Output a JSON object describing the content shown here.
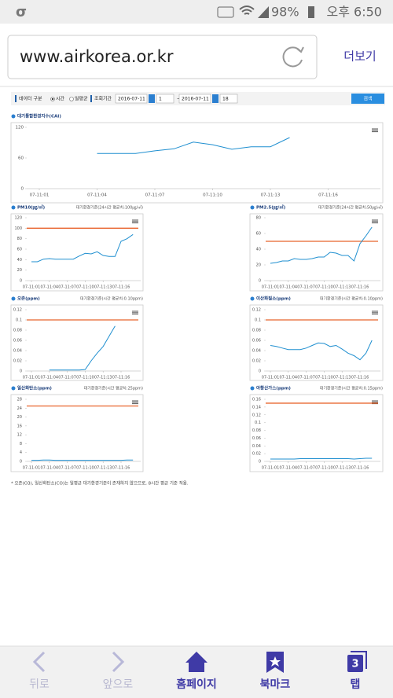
{
  "status_bar": {
    "battery": "98%",
    "time": "오후 6:50"
  },
  "browser": {
    "url": "www.airkorea.or.kr",
    "menu": "더보기"
  },
  "form": {
    "data_type_label": "데이터 구분",
    "option_hourly": "시간",
    "option_daily": "일평균",
    "period_label": "조회기간",
    "start_date": "2016-07-11",
    "start_hour": "1",
    "tilde": "~",
    "end_date": "2016-07-11",
    "end_hour": "18",
    "search": "검색"
  },
  "charts": [
    {
      "type": "line",
      "title": "대기통합환경지수(CAI)",
      "color": "#1f8fd0",
      "categories": [
        "07-11:01",
        null,
        null,
        "07-11:04",
        null,
        null,
        "07-11:07",
        null,
        null,
        "07-11:10",
        null,
        null,
        "07-11:13",
        null,
        null,
        "07-11:16",
        null,
        null
      ],
      "values": [
        null,
        null,
        null,
        69,
        69,
        69,
        74,
        78,
        91,
        86,
        77,
        82,
        82,
        100,
        null,
        null,
        null,
        null
      ],
      "ylim": [
        0,
        120
      ],
      "yticks": [
        0,
        60,
        120
      ]
    },
    {
      "type": "line",
      "title": "PM10(㎍/㎥)",
      "standard_label": "대기환경기준(24시간 평균치:100㎍/㎥)",
      "standard": 100,
      "standard_color": "#e8632c",
      "color": "#1f8fd0",
      "categories": [
        "07-11:01",
        null,
        null,
        "07-11:04",
        null,
        null,
        "07-11:07",
        null,
        null,
        "07-11:10",
        null,
        null,
        "07-11:13",
        null,
        null,
        "07-11:16",
        null,
        null
      ],
      "values": [
        36,
        36,
        41,
        42,
        41,
        41,
        41,
        41,
        47,
        52,
        51,
        55,
        48,
        46,
        46,
        75,
        80,
        88
      ],
      "ylim": [
        0,
        120
      ],
      "yticks": [
        0,
        20,
        40,
        60,
        80,
        100,
        120
      ]
    },
    {
      "type": "line",
      "title": "PM2.5(㎍/㎥)",
      "standard_label": "대기환경기준(24시간 평균치:50㎍/㎥)",
      "standard": 50,
      "standard_color": "#e8632c",
      "color": "#1f8fd0",
      "categories": [
        "07-11:01",
        null,
        null,
        "07-11:04",
        null,
        null,
        "07-11:07",
        null,
        null,
        "07-11:10",
        null,
        null,
        "07-11:13",
        null,
        null,
        "07-11:16",
        null,
        null
      ],
      "values": [
        22,
        23,
        25,
        25,
        28,
        27,
        27,
        28,
        30,
        30,
        36,
        35,
        32,
        32,
        25,
        47,
        57,
        68
      ],
      "ylim": [
        0,
        80
      ],
      "yticks": [
        0,
        20,
        40,
        60,
        80
      ]
    },
    {
      "type": "line",
      "title": "오존(ppm)",
      "standard_label": "대기환경기준(시간 평균치:0.10ppm)",
      "standard": 0.1,
      "standard_color": "#e8632c",
      "color": "#1f8fd0",
      "categories": [
        "07-11:01",
        null,
        null,
        "07-11:04",
        null,
        null,
        "07-11:07",
        null,
        null,
        "07-11:10",
        null,
        null,
        "07-11:13",
        null,
        null,
        "07-11:16",
        null,
        null
      ],
      "values": [
        null,
        null,
        null,
        0.002,
        0.002,
        0.002,
        0.002,
        0.002,
        0.002,
        0.003,
        0.02,
        0.035,
        0.048,
        0.068,
        0.088,
        null,
        null,
        null
      ],
      "ylim": [
        0,
        0.12
      ],
      "yticks": [
        0,
        0.02,
        0.04,
        0.06,
        0.08,
        0.1,
        0.12
      ]
    },
    {
      "type": "line",
      "title": "이산화질소(ppm)",
      "standard_label": "대기환경기준(시간 평균치:0.10ppm)",
      "standard": 0.1,
      "standard_color": "#e8632c",
      "color": "#1f8fd0",
      "categories": [
        "07-11:01",
        null,
        null,
        "07-11:04",
        null,
        null,
        "07-11:07",
        null,
        null,
        "07-11:10",
        null,
        null,
        "07-11:13",
        null,
        null,
        "07-11:16",
        null,
        null
      ],
      "values": [
        0.05,
        0.048,
        0.045,
        0.042,
        0.042,
        0.042,
        0.045,
        0.05,
        0.055,
        0.054,
        0.048,
        0.05,
        0.043,
        0.035,
        0.03,
        0.022,
        0.035,
        0.06
      ],
      "ylim": [
        0,
        0.12
      ],
      "yticks": [
        0,
        0.02,
        0.04,
        0.06,
        0.08,
        0.1,
        0.12
      ]
    },
    {
      "type": "line",
      "title": "일산화탄소(ppm)",
      "standard_label": "대기환경기준(시간 평균치:25ppm)",
      "standard": 25,
      "standard_color": "#e8632c",
      "color": "#1f8fd0",
      "categories": [
        "07-11:01",
        null,
        null,
        "07-11:04",
        null,
        null,
        "07-11:07",
        null,
        null,
        "07-11:10",
        null,
        null,
        "07-11:13",
        null,
        null,
        "07-11:16",
        null,
        null
      ],
      "values": [
        0.5,
        0.5,
        0.6,
        0.6,
        0.5,
        0.5,
        0.5,
        0.5,
        0.5,
        0.5,
        0.5,
        0.5,
        0.5,
        0.5,
        0.5,
        0.5,
        0.6,
        0.6
      ],
      "ylim": [
        0,
        28
      ],
      "yticks": [
        0,
        4,
        8,
        12,
        16,
        20,
        24,
        28
      ]
    },
    {
      "type": "line",
      "title": "아황산가스(ppm)",
      "standard_label": "대기환경기준(시간 평균치:0.15ppm)",
      "standard": 0.15,
      "standard_color": "#e8632c",
      "color": "#1f8fd0",
      "categories": [
        "07-11:01",
        null,
        null,
        "07-11:04",
        null,
        null,
        "07-11:07",
        null,
        null,
        "07-11:10",
        null,
        null,
        "07-11:13",
        null,
        null,
        "07-11:16",
        null,
        null
      ],
      "values": [
        0.006,
        0.006,
        0.006,
        0.006,
        0.006,
        0.007,
        0.007,
        0.007,
        0.007,
        0.007,
        0.007,
        0.007,
        0.007,
        0.007,
        0.006,
        0.007,
        0.008,
        0.008
      ],
      "ylim": [
        0,
        0.16
      ],
      "yticks": [
        0,
        0.02,
        0.04,
        0.06,
        0.08,
        0.1,
        0.12,
        0.14,
        0.16
      ]
    }
  ],
  "footnote": "* 오존(O3), 일산화탄소(CO)는 일평균 대기환경기준이 존재하지 않으므로, 8시간 평균 기준 적용.",
  "nav": {
    "back": "뒤로",
    "forward": "앞으로",
    "home": "홈페이지",
    "bookmarks": "북마크",
    "tabs": "탭",
    "tab_count": 3
  }
}
